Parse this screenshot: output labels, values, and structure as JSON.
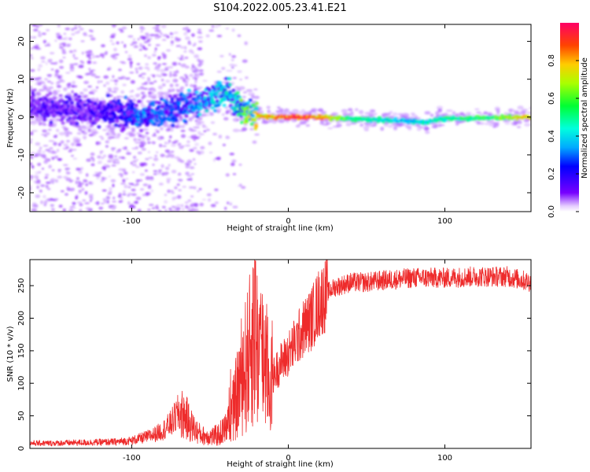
{
  "figure": {
    "title": "S104.2022.005.23.41.E21"
  },
  "chart_data": [
    {
      "type": "heatmap",
      "xlabel": "Height of straight line (km)",
      "ylabel": "Frequency (Hz)",
      "xlim": [
        -165,
        155
      ],
      "ylim": [
        -25,
        24.5
      ],
      "x_ticks": [
        -100,
        0,
        100
      ],
      "y_ticks": [
        -20,
        -10,
        0,
        10,
        20
      ],
      "grid": false,
      "colormap": [
        "#e5ccff",
        "#7700ff",
        "#0000ff",
        "#00e5ff",
        "#00ff66",
        "#aaff00",
        "#ffcc00",
        "#ff4400",
        "#ff0066"
      ],
      "colorbar": {
        "label": "Normalized spectral amplitude",
        "range": [
          0.0,
          1.0
        ],
        "ticks": [
          "0.0",
          "0.2",
          "0.4",
          "0.6",
          "0.8"
        ]
      },
      "ridge": {
        "x": [
          -165,
          -140,
          -120,
          -105,
          -95,
          -85,
          -75,
          -65,
          -55,
          -45,
          -40,
          -35,
          -30,
          -25,
          -20,
          -10,
          0,
          20,
          40,
          60,
          75,
          82,
          88,
          95,
          110,
          130,
          155
        ],
        "freq": [
          3,
          2,
          1.5,
          0.5,
          0.5,
          1,
          2,
          3,
          4,
          6,
          7,
          5,
          2,
          1,
          0.5,
          0,
          0,
          0,
          -0.5,
          -0.8,
          -1,
          -1.2,
          -1.5,
          -0.6,
          -0.3,
          -0.2,
          0
        ],
        "amplitude": [
          0.22,
          0.22,
          0.22,
          0.3,
          0.35,
          0.35,
          0.33,
          0.35,
          0.4,
          0.45,
          0.45,
          0.42,
          0.6,
          0.75,
          0.8,
          0.85,
          1.0,
          0.9,
          0.55,
          0.5,
          0.4,
          0.45,
          0.5,
          0.5,
          0.55,
          0.6,
          0.85
        ]
      }
    },
    {
      "type": "line",
      "xlabel": "Height of straight line (km)",
      "ylabel": "SNR (10 * v/v)",
      "xlim": [
        -165,
        155
      ],
      "ylim": [
        0,
        290
      ],
      "x_ticks": [
        -100,
        0,
        100
      ],
      "y_ticks": [
        0,
        50,
        100,
        150,
        200,
        250
      ],
      "grid": false,
      "color": "#ee2b2b",
      "series": [
        {
          "x": [
            -165,
            -150,
            -130,
            -110,
            -100,
            -90,
            -85,
            -80,
            -75,
            -70,
            -66,
            -62,
            -58,
            -55,
            -50,
            -45,
            -40,
            -35,
            -30,
            -25,
            -22,
            -20,
            -18,
            -15,
            -12,
            -10,
            -5,
            0,
            5,
            10,
            15,
            20,
            25,
            30,
            40,
            50,
            60,
            80,
            100,
            120,
            140,
            155
          ],
          "y": [
            8,
            8,
            9,
            10,
            12,
            18,
            22,
            28,
            38,
            55,
            50,
            35,
            25,
            20,
            18,
            20,
            30,
            60,
            110,
            140,
            190,
            160,
            150,
            140,
            95,
            110,
            130,
            145,
            165,
            185,
            200,
            225,
            240,
            248,
            255,
            255,
            258,
            262,
            262,
            264,
            264,
            255
          ]
        }
      ]
    }
  ]
}
